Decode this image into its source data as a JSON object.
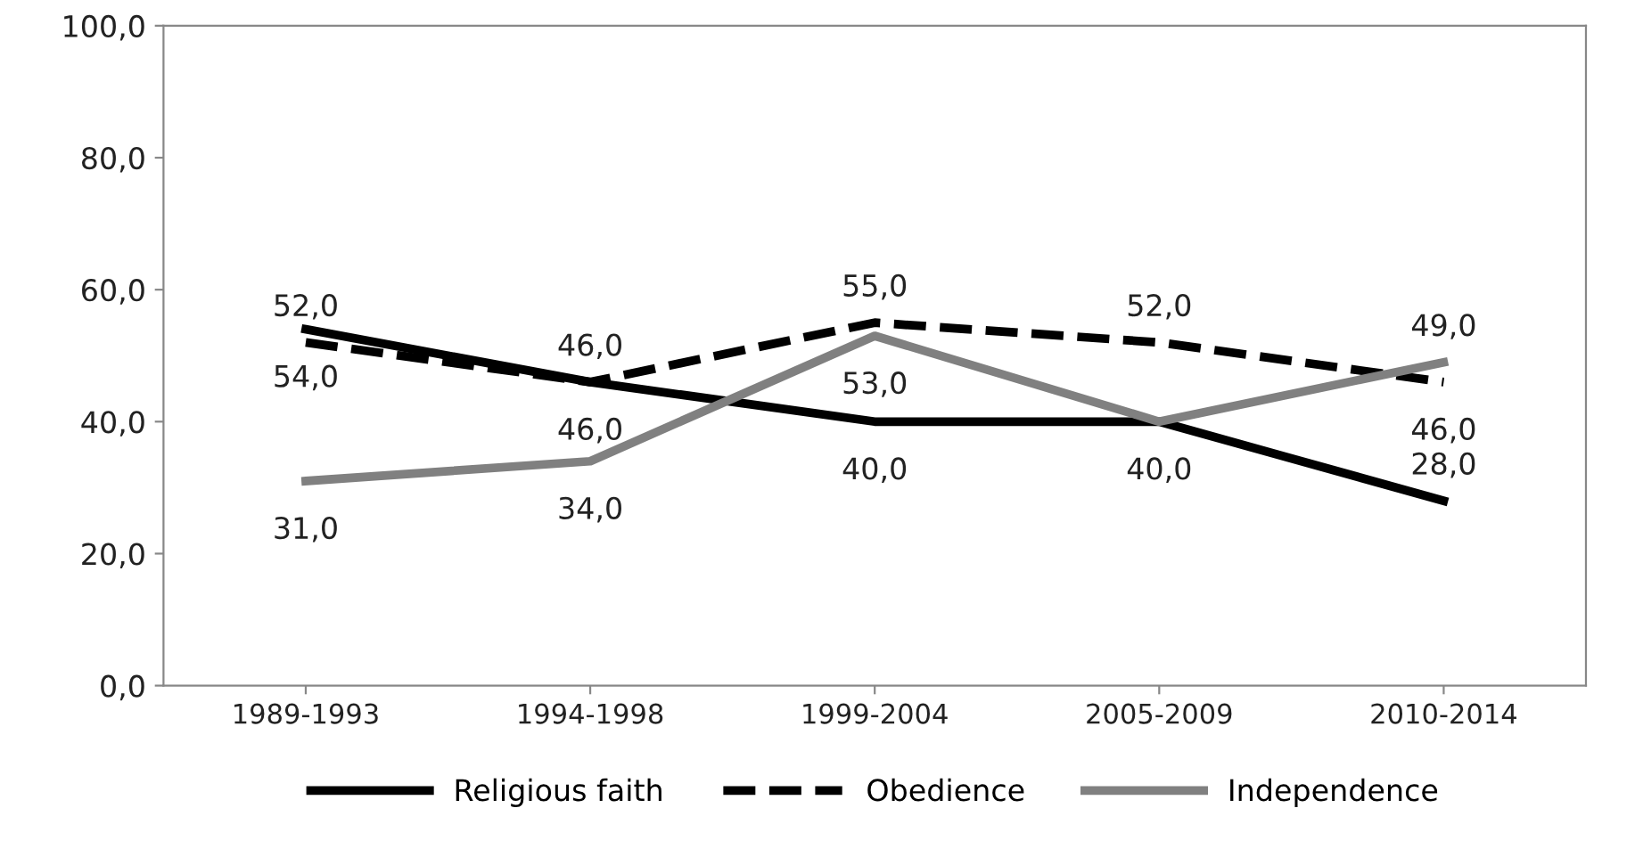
{
  "chart_data": {
    "type": "line",
    "categories": [
      "1989-1993",
      "1994-1998",
      "1999-2004",
      "2005-2009",
      "2010-2014"
    ],
    "series": [
      {
        "name": "Religious faith",
        "color": "#000000",
        "line_style": "solid",
        "values": [
          54,
          46,
          40,
          40,
          28
        ],
        "value_labels": [
          "54,0",
          "46,0",
          "40,0",
          "40,0",
          "28,0"
        ]
      },
      {
        "name": "Obedience",
        "color": "#000000",
        "line_style": "dashed",
        "values": [
          52,
          46,
          55,
          52,
          46
        ],
        "value_labels": [
          "52,0",
          "46,0",
          "55,0",
          "52,0",
          "46,0"
        ]
      },
      {
        "name": "Independence",
        "color": "#808080",
        "line_style": "solid",
        "values": [
          31,
          34,
          53,
          40,
          49
        ],
        "value_labels": [
          "31,0",
          "34,0",
          "53,0",
          null,
          "49,0"
        ]
      }
    ],
    "ylim": [
      0,
      100
    ],
    "yticks": [
      {
        "value": 0,
        "label": "0,0"
      },
      {
        "value": 20,
        "label": "20,0"
      },
      {
        "value": 40,
        "label": "40,0"
      },
      {
        "value": 60,
        "label": "60,0"
      },
      {
        "value": 80,
        "label": "80,0"
      },
      {
        "value": 100,
        "label": "100,0"
      }
    ],
    "grid": false,
    "legend": "bottom",
    "marker": "none"
  }
}
